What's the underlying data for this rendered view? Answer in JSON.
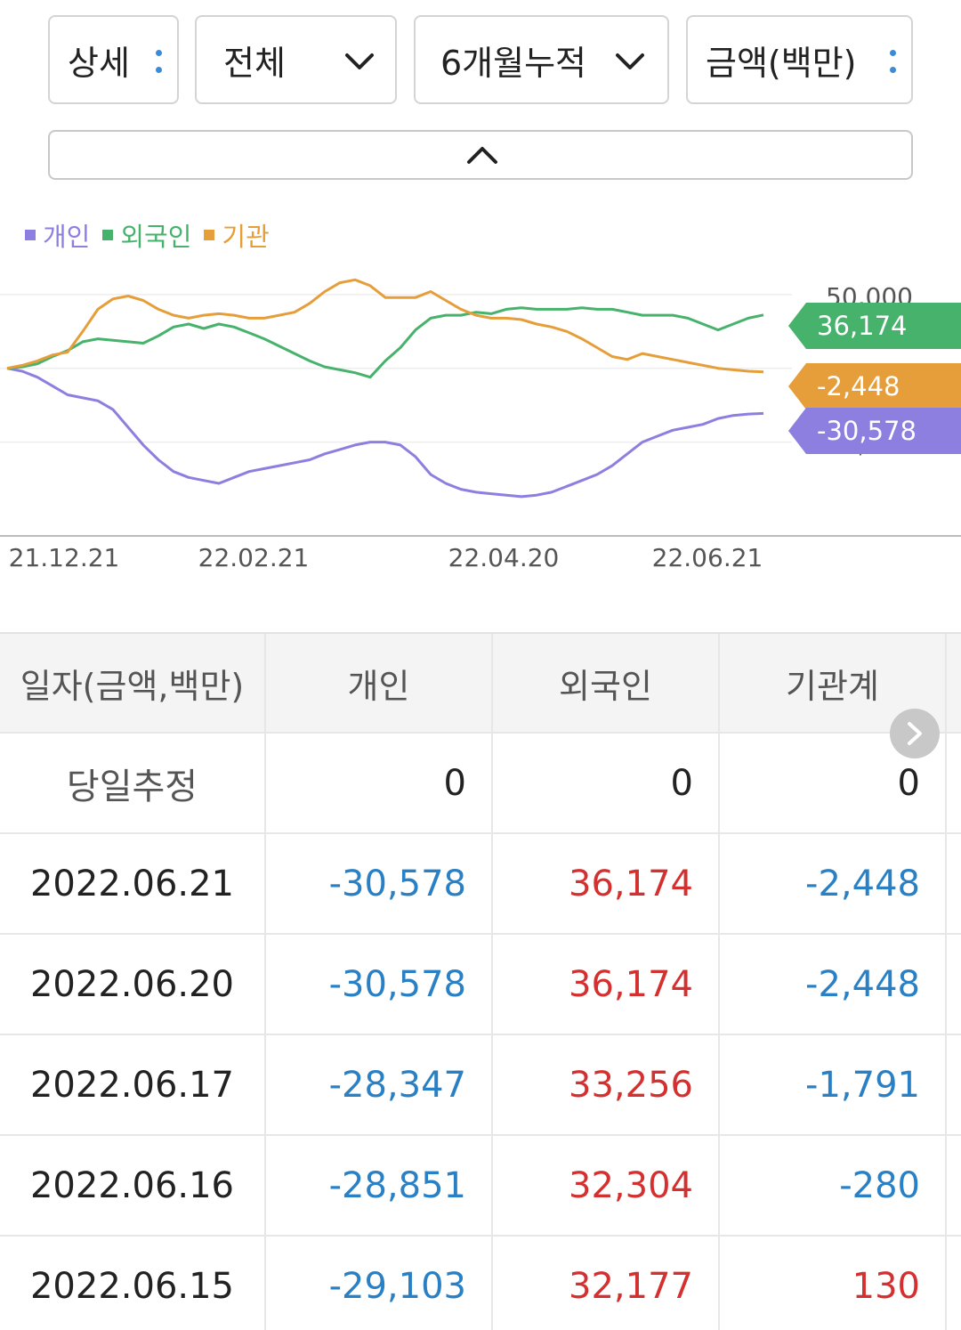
{
  "filters": {
    "detail": "상세",
    "scope": "전체",
    "period": "6개월누적",
    "unit": "금액(백만)"
  },
  "colors": {
    "individual": "#8c7fe0",
    "foreign": "#47b26b",
    "institution": "#e59e3a",
    "negative": "#2a80c4",
    "positive": "#d3302f"
  },
  "legend": [
    "개인",
    "외국인",
    "기관"
  ],
  "chart_data": {
    "type": "line",
    "x_ticks": [
      "21.12.21",
      "22.02.21",
      "22.04.20",
      "22.06.21"
    ],
    "y_ticks": [
      50000,
      -50000
    ],
    "y_tick_labels": [
      "50,000",
      "-50,000"
    ],
    "ylim": [
      -110000,
      65000
    ],
    "series": [
      {
        "name": "개인",
        "end_label": "-30,578",
        "values": [
          0,
          -2000,
          -6000,
          -12000,
          -18000,
          -20000,
          -22000,
          -28000,
          -40000,
          -52000,
          -62000,
          -70000,
          -74000,
          -76000,
          -78000,
          -74000,
          -70000,
          -68000,
          -66000,
          -64000,
          -62000,
          -58000,
          -55000,
          -52000,
          -50000,
          -50000,
          -52000,
          -60000,
          -72000,
          -78000,
          -82000,
          -84000,
          -85000,
          -86000,
          -87000,
          -86000,
          -84000,
          -80000,
          -76000,
          -72000,
          -66000,
          -58000,
          -50000,
          -46000,
          -42000,
          -40000,
          -38000,
          -34000,
          -32000,
          -31000,
          -30578
        ]
      },
      {
        "name": "외국인",
        "end_label": "36,174",
        "values": [
          0,
          1000,
          3000,
          8000,
          12000,
          18000,
          20000,
          19000,
          18000,
          17000,
          22000,
          28000,
          30000,
          27000,
          30000,
          28000,
          24000,
          20000,
          15000,
          10000,
          5000,
          1000,
          -1000,
          -3000,
          -6000,
          5000,
          14000,
          26000,
          34000,
          36000,
          36000,
          38000,
          37000,
          40000,
          41000,
          40000,
          40000,
          40000,
          41000,
          40000,
          40000,
          38000,
          36000,
          36000,
          36000,
          34000,
          30000,
          26000,
          30000,
          34000,
          36174
        ]
      },
      {
        "name": "기관",
        "end_label": "-2,448",
        "values": [
          0,
          2000,
          5000,
          9000,
          11000,
          25000,
          40000,
          47000,
          49000,
          46000,
          40000,
          36000,
          34000,
          36000,
          37000,
          36000,
          34000,
          34000,
          36000,
          38000,
          44000,
          52000,
          58000,
          60000,
          56000,
          48000,
          48000,
          48000,
          52000,
          46000,
          40000,
          36000,
          34000,
          34000,
          33000,
          30000,
          28000,
          25000,
          20000,
          14000,
          8000,
          6000,
          10000,
          8000,
          6000,
          4000,
          2000,
          0,
          -1000,
          -2000,
          -2448
        ]
      }
    ]
  },
  "table": {
    "headers": [
      "일자(금액,백만)",
      "개인",
      "외국인",
      "기관계"
    ],
    "rows": [
      [
        "당일추정",
        "0",
        "0",
        "0"
      ],
      [
        "2022.06.21",
        "-30,578",
        "36,174",
        "-2,448"
      ],
      [
        "2022.06.20",
        "-30,578",
        "36,174",
        "-2,448"
      ],
      [
        "2022.06.17",
        "-28,347",
        "33,256",
        "-1,791"
      ],
      [
        "2022.06.16",
        "-28,851",
        "32,304",
        "-280"
      ],
      [
        "2022.06.15",
        "-29,103",
        "32,177",
        "130"
      ]
    ]
  }
}
